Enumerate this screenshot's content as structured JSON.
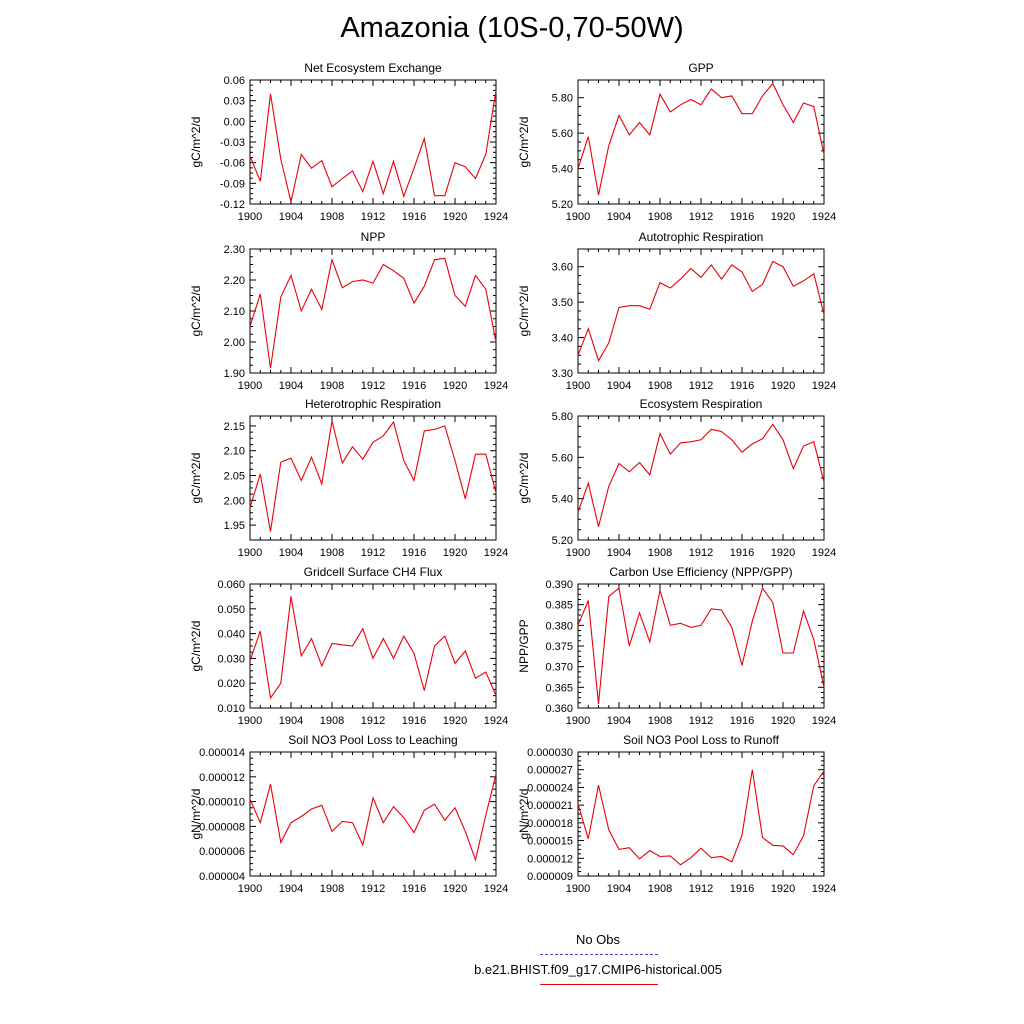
{
  "page": {
    "title": "Amazonia (10S-0,70-50W)"
  },
  "legend": {
    "obs_label": "No Obs",
    "obs_color": "#4444cc",
    "model_label": "b.e21.BHIST.f09_g17.CMIP6-historical.005",
    "model_color": "#e8000b"
  },
  "chart_data": [
    {
      "type": "line",
      "title": "Net Ecosystem Exchange",
      "ylabel": "gC/m^2/d",
      "xlim": [
        1900,
        1924
      ],
      "ylim": [
        -0.12,
        0.06
      ],
      "yticks": [
        "0.06",
        "0.03",
        "0.00",
        "-0.03",
        "-0.06",
        "-0.09",
        "-0.12"
      ],
      "yticks_values": [
        0.06,
        0.03,
        0.0,
        -0.03,
        -0.06,
        -0.09,
        -0.12
      ],
      "xticks": [
        "1900",
        "1904",
        "1908",
        "1912",
        "1916",
        "1920",
        "1924"
      ],
      "series": [
        {
          "x": [
            1900,
            1901,
            1902,
            1903,
            1904,
            1905,
            1906,
            1907,
            1908,
            1909,
            1910,
            1911,
            1912,
            1913,
            1914,
            1915,
            1916,
            1917,
            1918,
            1919,
            1920,
            1921,
            1922,
            1923,
            1924
          ],
          "values": [
            -0.05,
            -0.087,
            0.04,
            -0.055,
            -0.117,
            -0.048,
            -0.068,
            -0.057,
            -0.095,
            -0.083,
            -0.072,
            -0.102,
            -0.058,
            -0.105,
            -0.058,
            -0.109,
            -0.068,
            -0.025,
            -0.108,
            -0.108,
            -0.06,
            -0.066,
            -0.083,
            -0.048,
            0.045
          ]
        }
      ]
    },
    {
      "type": "line",
      "title": "GPP",
      "ylabel": "gC/m^2/d",
      "xlim": [
        1900,
        1924
      ],
      "ylim": [
        5.2,
        5.9
      ],
      "yticks": [
        "5.80",
        "5.60",
        "5.40",
        "5.20"
      ],
      "yticks_values": [
        5.8,
        5.6,
        5.4,
        5.2
      ],
      "xticks": [
        "1900",
        "1904",
        "1908",
        "1912",
        "1916",
        "1920",
        "1924"
      ],
      "series": [
        {
          "x": [
            1900,
            1901,
            1902,
            1903,
            1904,
            1905,
            1906,
            1907,
            1908,
            1909,
            1910,
            1911,
            1912,
            1913,
            1914,
            1915,
            1916,
            1917,
            1918,
            1919,
            1920,
            1921,
            1922,
            1923,
            1924
          ],
          "values": [
            5.4,
            5.58,
            5.25,
            5.53,
            5.7,
            5.59,
            5.66,
            5.59,
            5.82,
            5.72,
            5.76,
            5.79,
            5.76,
            5.85,
            5.8,
            5.81,
            5.71,
            5.71,
            5.81,
            5.88,
            5.76,
            5.66,
            5.77,
            5.75,
            5.48
          ]
        }
      ]
    },
    {
      "type": "line",
      "title": "NPP",
      "ylabel": "gC/m^2/d",
      "xlim": [
        1900,
        1924
      ],
      "ylim": [
        1.9,
        2.3
      ],
      "yticks": [
        "2.30",
        "2.20",
        "2.10",
        "2.00",
        "1.90"
      ],
      "yticks_values": [
        2.3,
        2.2,
        2.1,
        2.0,
        1.9
      ],
      "xticks": [
        "1900",
        "1904",
        "1908",
        "1912",
        "1916",
        "1920",
        "1924"
      ],
      "series": [
        {
          "x": [
            1900,
            1901,
            1902,
            1903,
            1904,
            1905,
            1906,
            1907,
            1908,
            1909,
            1910,
            1911,
            1912,
            1913,
            1914,
            1915,
            1916,
            1917,
            1918,
            1919,
            1920,
            1921,
            1922,
            1923,
            1924
          ],
          "values": [
            2.05,
            2.155,
            1.915,
            2.145,
            2.215,
            2.1,
            2.17,
            2.105,
            2.265,
            2.175,
            2.195,
            2.2,
            2.19,
            2.25,
            2.23,
            2.205,
            2.125,
            2.18,
            2.265,
            2.27,
            2.15,
            2.115,
            2.215,
            2.17,
            2.0
          ]
        }
      ]
    },
    {
      "type": "line",
      "title": "Autotrophic Respiration",
      "ylabel": "gC/m^2/d",
      "xlim": [
        1900,
        1924
      ],
      "ylim": [
        3.3,
        3.65
      ],
      "yticks": [
        "3.60",
        "3.50",
        "3.40",
        "3.30"
      ],
      "yticks_values": [
        3.6,
        3.5,
        3.4,
        3.3
      ],
      "xticks": [
        "1900",
        "1904",
        "1908",
        "1912",
        "1916",
        "1920",
        "1924"
      ],
      "series": [
        {
          "x": [
            1900,
            1901,
            1902,
            1903,
            1904,
            1905,
            1906,
            1907,
            1908,
            1909,
            1910,
            1911,
            1912,
            1913,
            1914,
            1915,
            1916,
            1917,
            1918,
            1919,
            1920,
            1921,
            1922,
            1923,
            1924
          ],
          "values": [
            3.35,
            3.425,
            3.335,
            3.385,
            3.485,
            3.49,
            3.49,
            3.48,
            3.555,
            3.54,
            3.565,
            3.595,
            3.57,
            3.605,
            3.565,
            3.605,
            3.585,
            3.53,
            3.55,
            3.615,
            3.6,
            3.545,
            3.56,
            3.58,
            3.465
          ]
        }
      ]
    },
    {
      "type": "line",
      "title": "Heterotrophic Respiration",
      "ylabel": "gC/m^2/d",
      "xlim": [
        1900,
        1924
      ],
      "ylim": [
        1.92,
        2.17
      ],
      "yticks": [
        "2.15",
        "2.10",
        "2.05",
        "2.00",
        "1.95"
      ],
      "yticks_values": [
        2.15,
        2.1,
        2.05,
        2.0,
        1.95
      ],
      "xticks": [
        "1900",
        "1904",
        "1908",
        "1912",
        "1916",
        "1920",
        "1924"
      ],
      "series": [
        {
          "x": [
            1900,
            1901,
            1902,
            1903,
            1904,
            1905,
            1906,
            1907,
            1908,
            1909,
            1910,
            1911,
            1912,
            1913,
            1914,
            1915,
            1916,
            1917,
            1918,
            1919,
            1920,
            1921,
            1922,
            1923,
            1924
          ],
          "values": [
            1.985,
            2.053,
            1.937,
            2.077,
            2.085,
            2.04,
            2.087,
            2.033,
            2.16,
            2.075,
            2.108,
            2.083,
            2.117,
            2.13,
            2.158,
            2.08,
            2.04,
            2.14,
            2.143,
            2.15,
            2.08,
            2.003,
            2.093,
            2.093,
            2.015
          ]
        }
      ]
    },
    {
      "type": "line",
      "title": "Ecosystem Respiration",
      "ylabel": "gC/m^2/d",
      "xlim": [
        1900,
        1924
      ],
      "ylim": [
        5.2,
        5.8
      ],
      "yticks": [
        "5.80",
        "5.60",
        "5.40",
        "5.20"
      ],
      "yticks_values": [
        5.8,
        5.6,
        5.4,
        5.2
      ],
      "xticks": [
        "1900",
        "1904",
        "1908",
        "1912",
        "1916",
        "1920",
        "1924"
      ],
      "series": [
        {
          "x": [
            1900,
            1901,
            1902,
            1903,
            1904,
            1905,
            1906,
            1907,
            1908,
            1909,
            1910,
            1911,
            1912,
            1913,
            1914,
            1915,
            1916,
            1917,
            1918,
            1919,
            1920,
            1921,
            1922,
            1923,
            1924
          ],
          "values": [
            5.335,
            5.475,
            5.265,
            5.46,
            5.57,
            5.53,
            5.575,
            5.515,
            5.715,
            5.615,
            5.67,
            5.675,
            5.685,
            5.735,
            5.725,
            5.685,
            5.625,
            5.665,
            5.69,
            5.76,
            5.685,
            5.545,
            5.655,
            5.675,
            5.48
          ]
        }
      ]
    },
    {
      "type": "line",
      "title": "Gridcell Surface CH4 Flux",
      "ylabel": "gC/m^2/d",
      "xlim": [
        1900,
        1924
      ],
      "ylim": [
        0.01,
        0.06
      ],
      "yticks": [
        "0.060",
        "0.050",
        "0.040",
        "0.030",
        "0.020",
        "0.010"
      ],
      "yticks_values": [
        0.06,
        0.05,
        0.04,
        0.03,
        0.02,
        0.01
      ],
      "xticks": [
        "1900",
        "1904",
        "1908",
        "1912",
        "1916",
        "1920",
        "1924"
      ],
      "series": [
        {
          "x": [
            1900,
            1901,
            1902,
            1903,
            1904,
            1905,
            1906,
            1907,
            1908,
            1909,
            1910,
            1911,
            1912,
            1913,
            1914,
            1915,
            1916,
            1917,
            1918,
            1919,
            1920,
            1921,
            1922,
            1923,
            1924
          ],
          "values": [
            0.029,
            0.041,
            0.014,
            0.02,
            0.055,
            0.031,
            0.038,
            0.027,
            0.036,
            0.0355,
            0.035,
            0.042,
            0.03,
            0.038,
            0.03,
            0.039,
            0.032,
            0.017,
            0.035,
            0.039,
            0.028,
            0.033,
            0.022,
            0.0245,
            0.015
          ]
        }
      ]
    },
    {
      "type": "line",
      "title": "Carbon Use Efficiency (NPP/GPP)",
      "ylabel": "NPP/GPP",
      "xlim": [
        1900,
        1924
      ],
      "ylim": [
        0.36,
        0.39
      ],
      "yticks": [
        "0.390",
        "0.385",
        "0.380",
        "0.375",
        "0.370",
        "0.365",
        "0.360"
      ],
      "yticks_values": [
        0.39,
        0.385,
        0.38,
        0.375,
        0.37,
        0.365,
        0.36
      ],
      "xticks": [
        "1900",
        "1904",
        "1908",
        "1912",
        "1916",
        "1920",
        "1924"
      ],
      "series": [
        {
          "x": [
            1900,
            1901,
            1902,
            1903,
            1904,
            1905,
            1906,
            1907,
            1908,
            1909,
            1910,
            1911,
            1912,
            1913,
            1914,
            1915,
            1916,
            1917,
            1918,
            1919,
            1920,
            1921,
            1922,
            1923,
            1924
          ],
          "values": [
            0.38,
            0.386,
            0.361,
            0.387,
            0.389,
            0.375,
            0.383,
            0.376,
            0.3885,
            0.38,
            0.3805,
            0.3795,
            0.38,
            0.384,
            0.3837,
            0.3795,
            0.3703,
            0.381,
            0.389,
            0.3855,
            0.3733,
            0.3733,
            0.3835,
            0.3765,
            0.365
          ]
        }
      ]
    },
    {
      "type": "line",
      "title": "Soil NO3 Pool Loss to Leaching",
      "ylabel": "gN/m^2/d",
      "xlim": [
        1900,
        1924
      ],
      "ylim": [
        4e-06,
        1.4e-05
      ],
      "yticks": [
        "0.000014",
        "0.000012",
        "0.000010",
        "0.000008",
        "0.000006",
        "0.000004"
      ],
      "yticks_values": [
        1.4e-05,
        1.2e-05,
        1e-05,
        8e-06,
        6e-06,
        4e-06
      ],
      "xticks": [
        "1900",
        "1904",
        "1908",
        "1912",
        "1916",
        "1920",
        "1924"
      ],
      "series": [
        {
          "x": [
            1900,
            1901,
            1902,
            1903,
            1904,
            1905,
            1906,
            1907,
            1908,
            1909,
            1910,
            1911,
            1912,
            1913,
            1914,
            1915,
            1916,
            1917,
            1918,
            1919,
            1920,
            1921,
            1922,
            1923,
            1924
          ],
          "values": [
            1.02e-05,
            8.3e-06,
            1.14e-05,
            6.7e-06,
            8.3e-06,
            8.8e-06,
            9.4e-06,
            9.7e-06,
            7.6e-06,
            8.4e-06,
            8.3e-06,
            6.5e-06,
            1.03e-05,
            8.3e-06,
            9.6e-06,
            8.7e-06,
            7.5e-06,
            9.3e-06,
            9.8e-06,
            8.5e-06,
            9.5e-06,
            7.6e-06,
            5.3e-06,
            8.9e-06,
            1.22e-05
          ]
        }
      ]
    },
    {
      "type": "line",
      "title": "Soil NO3 Pool Loss to Runoff",
      "ylabel": "gN/m^2/d",
      "xlim": [
        1900,
        1924
      ],
      "ylim": [
        9e-06,
        3e-05
      ],
      "yticks": [
        "0.000030",
        "0.000027",
        "0.000024",
        "0.000021",
        "0.000018",
        "0.000015",
        "0.000012",
        "0.000009"
      ],
      "yticks_values": [
        3e-05,
        2.7e-05,
        2.4e-05,
        2.1e-05,
        1.8e-05,
        1.5e-05,
        1.2e-05,
        9e-06
      ],
      "xticks": [
        "1900",
        "1904",
        "1908",
        "1912",
        "1916",
        "1920",
        "1924"
      ],
      "series": [
        {
          "x": [
            1900,
            1901,
            1902,
            1903,
            1904,
            1905,
            1906,
            1907,
            1908,
            1909,
            1910,
            1911,
            1912,
            1913,
            1914,
            1915,
            1916,
            1917,
            1918,
            1919,
            1920,
            1921,
            1922,
            1923,
            1924
          ],
          "values": [
            2.12e-05,
            1.53e-05,
            2.44e-05,
            1.68e-05,
            1.35e-05,
            1.38e-05,
            1.19e-05,
            1.33e-05,
            1.23e-05,
            1.24e-05,
            1.09e-05,
            1.21e-05,
            1.37e-05,
            1.21e-05,
            1.23e-05,
            1.14e-05,
            1.59e-05,
            2.7e-05,
            1.55e-05,
            1.42e-05,
            1.41e-05,
            1.26e-05,
            1.58e-05,
            2.43e-05,
            2.68e-05
          ]
        }
      ]
    }
  ]
}
